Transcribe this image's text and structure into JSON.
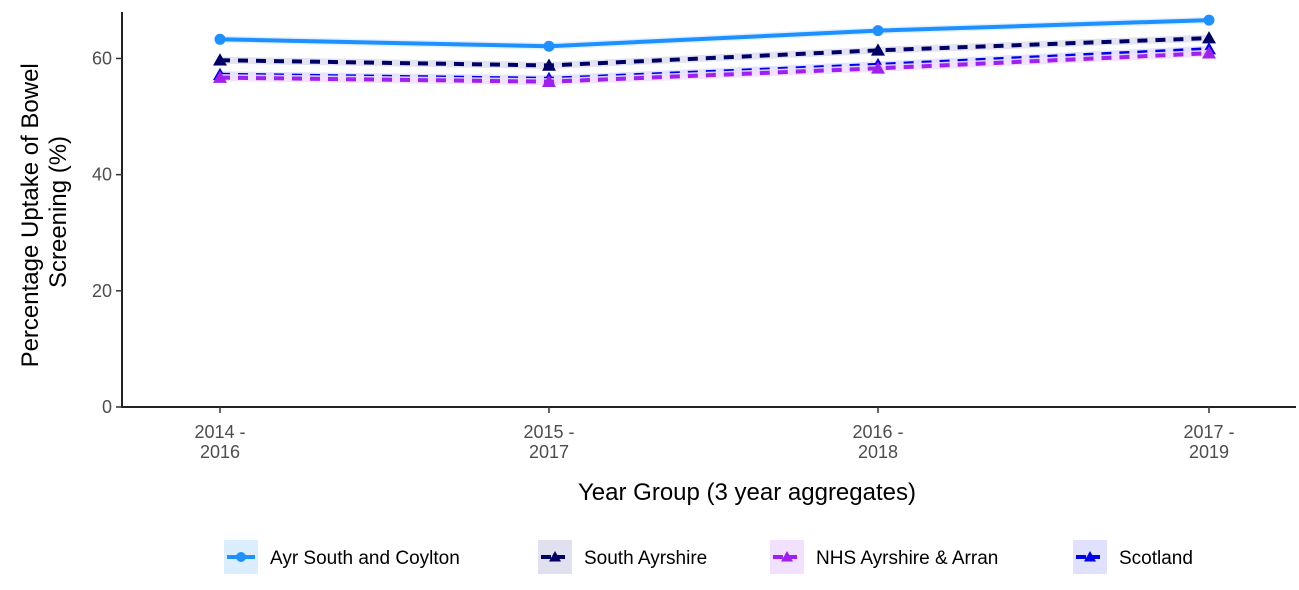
{
  "chart_data": {
    "type": "line",
    "xlabel": "Year Group (3 year aggregates)",
    "ylabel_lines": [
      "Percentage Uptake of Bowel",
      "Screening (%)"
    ],
    "categories": [
      [
        "2014 -",
        "2016"
      ],
      [
        "2015 -",
        "2017"
      ],
      [
        "2016 -",
        "2018"
      ],
      [
        "2017 -",
        "2019"
      ]
    ],
    "yticks": [
      0,
      20,
      40,
      60
    ],
    "ylim": [
      0,
      68
    ],
    "grid": false,
    "legend_position": "bottom",
    "series": [
      {
        "name": "Ayr South and Coylton",
        "values": [
          63.3,
          62.1,
          64.8,
          66.6
        ],
        "color": "#1e90ff",
        "dash": "solid",
        "marker": "circle",
        "ci_fill": "#dbeeff"
      },
      {
        "name": "South Ayrshire",
        "values": [
          59.7,
          58.8,
          61.4,
          63.5
        ],
        "color": "#000066",
        "dash": "dashed",
        "marker": "triangle",
        "ci_fill": "#e0e0ef"
      },
      {
        "name": "NHS Ayrshire & Arran",
        "values": [
          56.7,
          56.0,
          58.3,
          60.9
        ],
        "color": "#a020f0",
        "dash": "dashed",
        "marker": "triangle",
        "ci_fill": "#f1e1ff"
      },
      {
        "name": "Scotland",
        "values": [
          57.2,
          56.5,
          58.9,
          61.6
        ],
        "color": "#0000ee",
        "dash": "dashed",
        "marker": "triangle",
        "ci_fill": "#e0e0ff"
      }
    ]
  }
}
